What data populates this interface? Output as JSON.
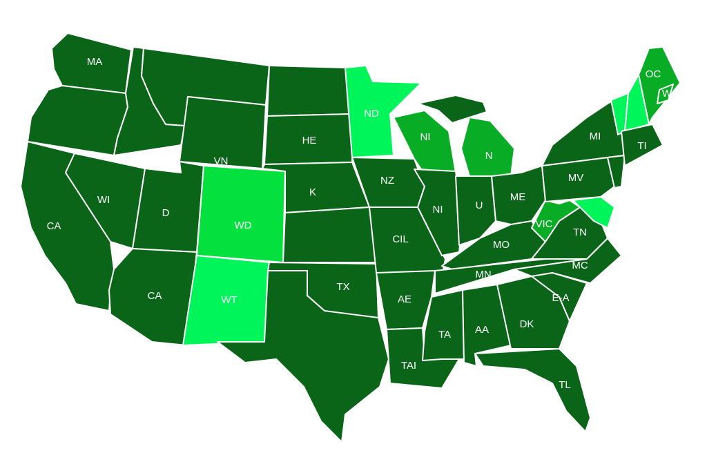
{
  "map": {
    "type": "choropleth",
    "region": "contiguous United States",
    "colors": {
      "dark": "#0a6518",
      "medium": "#08ad25",
      "bright": "#04e03e",
      "light": "#00f55a",
      "border": "#ffffff"
    },
    "states": [
      {
        "id": "WA",
        "label": "MA",
        "shade": "dark"
      },
      {
        "id": "OR",
        "label": "",
        "shade": "dark"
      },
      {
        "id": "CA",
        "label": "CA",
        "shade": "dark"
      },
      {
        "id": "ID",
        "label": "",
        "shade": "dark"
      },
      {
        "id": "MT",
        "label": "",
        "shade": "dark"
      },
      {
        "id": "WY",
        "label": "VN",
        "shade": "dark"
      },
      {
        "id": "NV",
        "label": "WI",
        "shade": "dark"
      },
      {
        "id": "UT",
        "label": "D",
        "shade": "dark"
      },
      {
        "id": "CO",
        "label": "WD",
        "shade": "bright"
      },
      {
        "id": "AZ",
        "label": "CA",
        "shade": "dark"
      },
      {
        "id": "NM",
        "label": "WT",
        "shade": "light"
      },
      {
        "id": "ND",
        "label": "",
        "shade": "dark"
      },
      {
        "id": "SD",
        "label": "HE",
        "shade": "dark"
      },
      {
        "id": "NE",
        "label": "K",
        "shade": "dark"
      },
      {
        "id": "KS",
        "label": "",
        "shade": "dark"
      },
      {
        "id": "OK",
        "label": "TX",
        "shade": "dark"
      },
      {
        "id": "TX",
        "label": "",
        "shade": "dark"
      },
      {
        "id": "MN",
        "label": "ND",
        "shade": "light"
      },
      {
        "id": "IA",
        "label": "NZ",
        "shade": "dark"
      },
      {
        "id": "MO",
        "label": "CIL",
        "shade": "dark"
      },
      {
        "id": "AR",
        "label": "AE",
        "shade": "dark"
      },
      {
        "id": "LA",
        "label": "TAI",
        "shade": "dark"
      },
      {
        "id": "WI",
        "label": "NI",
        "shade": "medium"
      },
      {
        "id": "MI-U",
        "label": "",
        "shade": "dark"
      },
      {
        "id": "MI",
        "label": "N",
        "shade": "medium"
      },
      {
        "id": "IL",
        "label": "NI",
        "shade": "dark"
      },
      {
        "id": "IN",
        "label": "U",
        "shade": "dark"
      },
      {
        "id": "OH",
        "label": "ME",
        "shade": "dark"
      },
      {
        "id": "KY",
        "label": "MO",
        "shade": "dark"
      },
      {
        "id": "TN",
        "label": "MN",
        "shade": "dark"
      },
      {
        "id": "MS",
        "label": "TA",
        "shade": "dark"
      },
      {
        "id": "AL",
        "label": "AA",
        "shade": "dark"
      },
      {
        "id": "GA",
        "label": "DK",
        "shade": "dark"
      },
      {
        "id": "FL",
        "label": "TL",
        "shade": "dark"
      },
      {
        "id": "SC",
        "label": "E-A",
        "shade": "dark"
      },
      {
        "id": "NC",
        "label": "MC",
        "shade": "dark"
      },
      {
        "id": "VA",
        "label": "TN",
        "shade": "dark"
      },
      {
        "id": "WV",
        "label": "VIC",
        "shade": "medium"
      },
      {
        "id": "MD",
        "label": "",
        "shade": "light"
      },
      {
        "id": "PA",
        "label": "MV",
        "shade": "dark"
      },
      {
        "id": "NY",
        "label": "MI",
        "shade": "dark"
      },
      {
        "id": "NJ",
        "label": "",
        "shade": "dark"
      },
      {
        "id": "VT",
        "label": "",
        "shade": "light"
      },
      {
        "id": "NH",
        "label": "",
        "shade": "light"
      },
      {
        "id": "ME",
        "label": "OC",
        "shade": "medium"
      },
      {
        "id": "ME-coast",
        "label": "W",
        "shade": "medium"
      },
      {
        "id": "MA",
        "label": "TI",
        "shade": "dark"
      }
    ]
  }
}
